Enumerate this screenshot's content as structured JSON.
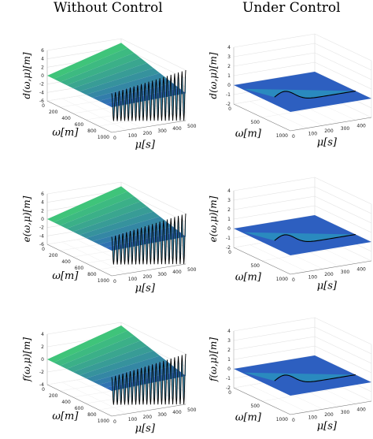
{
  "titles": {
    "left": "Without Control",
    "right": "Under Control"
  },
  "colors": {
    "surface_high": "#3fc47a",
    "surface_low": "#2d5fc0",
    "surface_mid": "#2a8fbf",
    "curve": "#000000"
  },
  "chart_data": [
    {
      "type": "surface3d",
      "title": "",
      "panel": "top-left",
      "zlabel": "d(ω,μ)[m]",
      "xlabel": "ω[m]",
      "ylabel": "μ[s]",
      "zticks": [
        "6",
        "4",
        "2",
        "0",
        "-2",
        "-4",
        "-6"
      ],
      "zlim": [
        -6,
        6
      ],
      "xticks": [
        "0",
        "200",
        "400",
        "600",
        "800",
        "1000"
      ],
      "xlim": [
        0,
        1000
      ],
      "yticks": [
        "0",
        "100",
        "200",
        "300",
        "400",
        "500"
      ],
      "ylim": [
        0,
        500
      ],
      "boundary_oscillations": 20,
      "boundary_amplitude": 6,
      "controlled": false
    },
    {
      "type": "surface3d",
      "title": "",
      "panel": "top-right",
      "zlabel": "d(ω,μ)[m]",
      "xlabel": "ω[m]",
      "ylabel": "μ[s]",
      "zticks": [
        "4",
        "3",
        "2",
        "1",
        "0",
        "-1",
        "-2"
      ],
      "zlim": [
        -2,
        4
      ],
      "xticks": [
        "0",
        "500",
        "1000"
      ],
      "xlim": [
        0,
        1000
      ],
      "yticks": [
        "0",
        "100",
        "200",
        "300",
        "400",
        "500"
      ],
      "ylim": [
        0,
        500
      ],
      "boundary_oscillations": 0,
      "boundary_amplitude": 0,
      "controlled": true
    },
    {
      "type": "surface3d",
      "title": "",
      "panel": "middle-left",
      "zlabel": "e(ω,μ)[m]",
      "xlabel": "ω[m]",
      "ylabel": "μ[s]",
      "zticks": [
        "6",
        "4",
        "2",
        "0",
        "-2",
        "-4",
        "-6"
      ],
      "zlim": [
        -6,
        6
      ],
      "xticks": [
        "0",
        "200",
        "400",
        "600",
        "800",
        "1000"
      ],
      "xlim": [
        0,
        1000
      ],
      "yticks": [
        "0",
        "100",
        "200",
        "300",
        "400",
        "500"
      ],
      "ylim": [
        0,
        500
      ],
      "boundary_oscillations": 20,
      "boundary_amplitude": 6,
      "controlled": false
    },
    {
      "type": "surface3d",
      "title": "",
      "panel": "middle-right",
      "zlabel": "e(ω,μ)[m]",
      "xlabel": "ω[m]",
      "ylabel": "μ[s]",
      "zticks": [
        "4",
        "3",
        "2",
        "1",
        "0",
        "-1",
        "-2"
      ],
      "zlim": [
        -2,
        4
      ],
      "xticks": [
        "0",
        "500",
        "1000"
      ],
      "xlim": [
        0,
        1000
      ],
      "yticks": [
        "0",
        "100",
        "200",
        "300",
        "400",
        "500"
      ],
      "ylim": [
        0,
        500
      ],
      "boundary_oscillations": 0,
      "boundary_amplitude": 0,
      "controlled": true
    },
    {
      "type": "surface3d",
      "title": "",
      "panel": "bottom-left",
      "zlabel": "f(ω,μ)[m]",
      "xlabel": "ω[m]",
      "ylabel": "μ[s]",
      "zticks": [
        "4",
        "2",
        "0",
        "-2",
        "-4"
      ],
      "zlim": [
        -4,
        4
      ],
      "xticks": [
        "0",
        "200",
        "400",
        "600",
        "800",
        "1000"
      ],
      "xlim": [
        0,
        1000
      ],
      "yticks": [
        "0",
        "100",
        "200",
        "300",
        "400",
        "500"
      ],
      "ylim": [
        0,
        500
      ],
      "boundary_oscillations": 20,
      "boundary_amplitude": 4,
      "controlled": false
    },
    {
      "type": "surface3d",
      "title": "",
      "panel": "bottom-right",
      "zlabel": "f(ω,μ)[m]",
      "xlabel": "ω[m]",
      "ylabel": "μ[s]",
      "zticks": [
        "4",
        "3",
        "2",
        "1",
        "0",
        "-1",
        "-2"
      ],
      "zlim": [
        -2,
        4
      ],
      "xticks": [
        "0",
        "500",
        "1000"
      ],
      "xlim": [
        0,
        1000
      ],
      "yticks": [
        "0",
        "100",
        "200",
        "300",
        "400",
        "500"
      ],
      "ylim": [
        0,
        500
      ],
      "boundary_oscillations": 0,
      "boundary_amplitude": 0,
      "controlled": true
    }
  ]
}
